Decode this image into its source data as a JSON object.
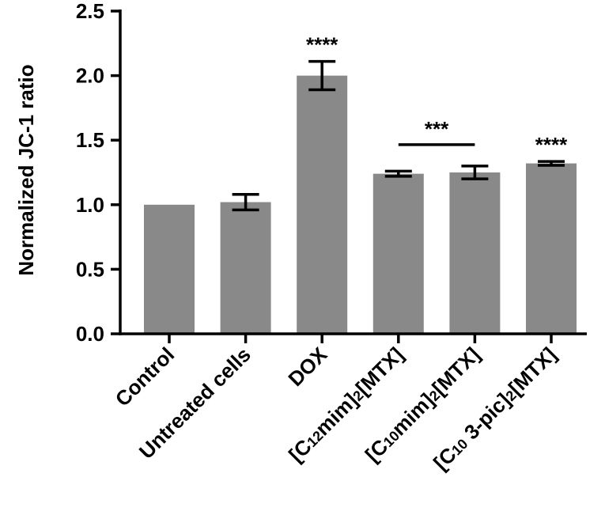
{
  "chart_data": {
    "type": "bar",
    "title": "",
    "xlabel": "",
    "ylabel": "Normalized JC-1 ratio",
    "ylim": [
      0,
      2.5
    ],
    "yticks": [
      {
        "value": 0.0,
        "label": "0.0"
      },
      {
        "value": 0.5,
        "label": "0.5"
      },
      {
        "value": 1.0,
        "label": "1.0"
      },
      {
        "value": 1.5,
        "label": "1.5"
      },
      {
        "value": 2.0,
        "label": "2.0"
      },
      {
        "value": 2.5,
        "label": "2.5"
      }
    ],
    "categories": [
      {
        "parts": [
          {
            "t": "Control"
          }
        ]
      },
      {
        "parts": [
          {
            "t": "Untreated cells"
          }
        ]
      },
      {
        "parts": [
          {
            "t": "DOX"
          }
        ]
      },
      {
        "parts": [
          {
            "t": "[C"
          },
          {
            "t": "12",
            "sub": true
          },
          {
            "t": "mim]"
          },
          {
            "t": "2",
            "sub": true
          },
          {
            "t": "[MTX]"
          }
        ]
      },
      {
        "parts": [
          {
            "t": "[C"
          },
          {
            "t": "10",
            "sub": true
          },
          {
            "t": "mim]"
          },
          {
            "t": "2",
            "sub": true
          },
          {
            "t": "[MTX]"
          }
        ]
      },
      {
        "parts": [
          {
            "t": "[C"
          },
          {
            "t": "10",
            "sub": true
          },
          {
            "t": " 3-pic]"
          },
          {
            "t": "2",
            "sub": true
          },
          {
            "t": "[MTX]"
          }
        ]
      }
    ],
    "values": [
      1.0,
      1.02,
      2.0,
      1.24,
      1.25,
      1.32
    ],
    "errors": [
      0,
      0.06,
      0.11,
      0.02,
      0.05,
      0.015
    ],
    "significance": [
      {
        "label": "****",
        "from": 2,
        "to": 2,
        "bracket": false
      },
      {
        "label": "***",
        "from": 3,
        "to": 4,
        "bracket": true
      },
      {
        "label": "****",
        "from": 5,
        "to": 5,
        "bracket": false
      }
    ],
    "grid": false,
    "bar_color": "#898989",
    "axis_color": "#000000"
  }
}
